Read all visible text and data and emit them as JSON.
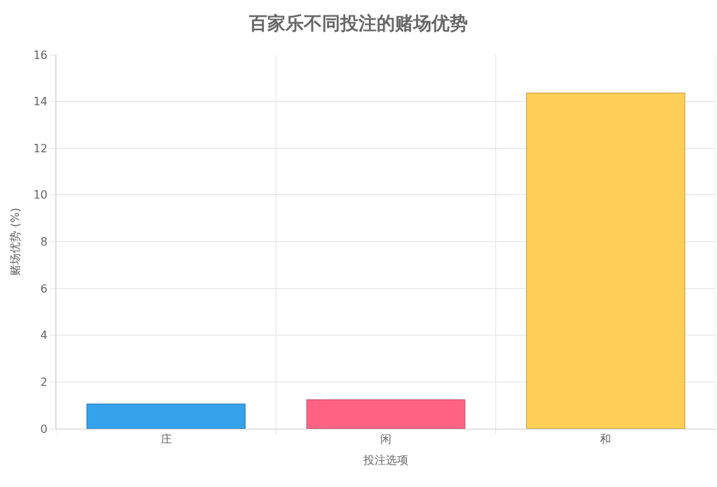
{
  "chart_data": {
    "type": "bar",
    "title": "百家乐不同投注的赌场优势",
    "xlabel": "投注选项",
    "ylabel": "赌场优势 (%)",
    "categories": [
      "庄",
      "闲",
      "和"
    ],
    "values": [
      1.06,
      1.24,
      14.36
    ],
    "colors": [
      "#36a2eb",
      "#ff6384",
      "#ffce56"
    ],
    "ylim": [
      0,
      16
    ],
    "yticks": [
      0,
      2,
      4,
      6,
      8,
      10,
      12,
      14,
      16
    ],
    "grid": true,
    "legend": false
  }
}
